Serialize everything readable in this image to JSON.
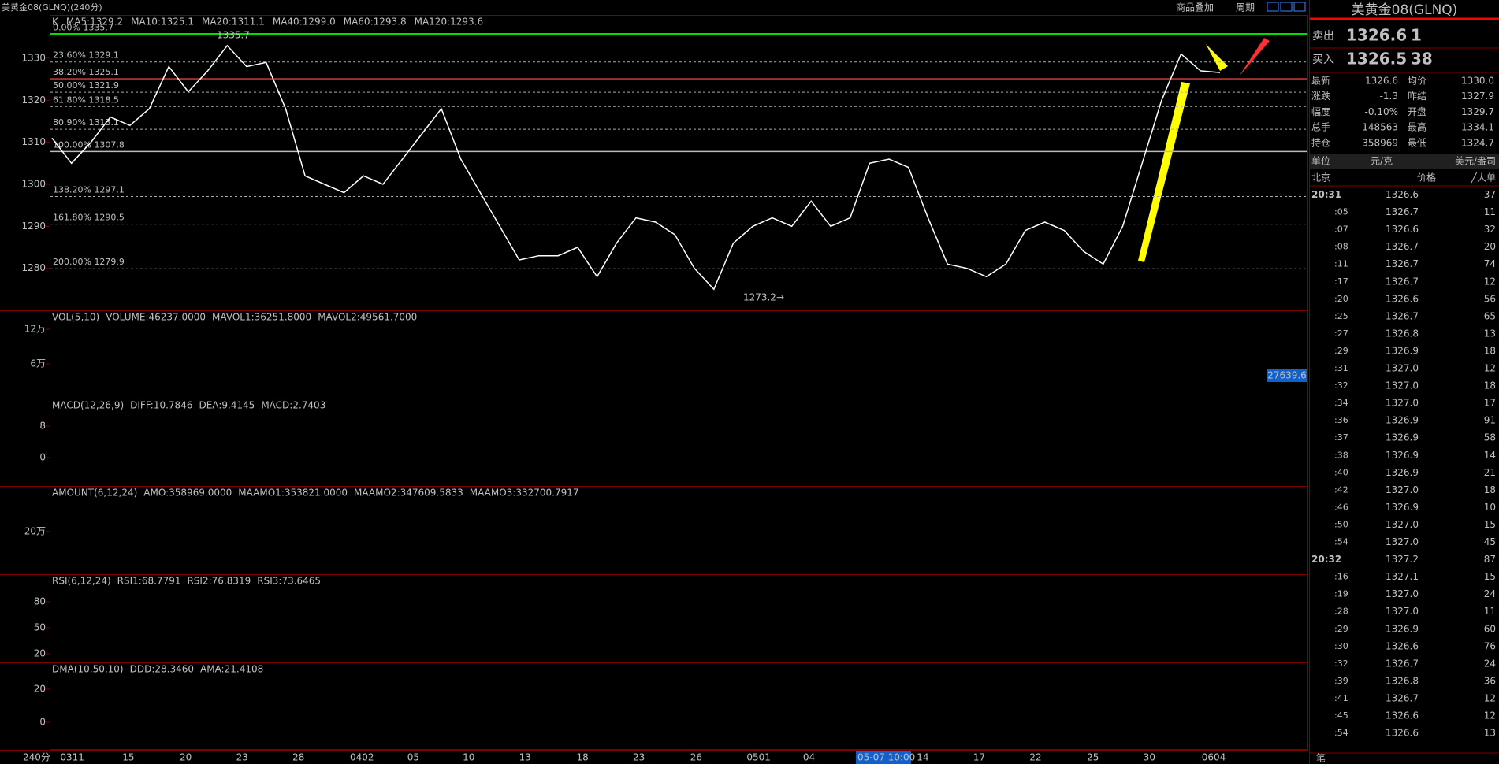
{
  "header": {
    "title": "美黄金08(GLNQ)(240分)",
    "overlay": "商品叠加",
    "period": "周期"
  },
  "kline": {
    "legend": [
      {
        "text": "K",
        "color": "#c0c0c0"
      },
      {
        "text": "MA5:1329.2",
        "color": "#ffffff"
      },
      {
        "text": "MA10:1325.1",
        "color": "#ffff00"
      },
      {
        "text": "MA20:1311.1",
        "color": "#ff00ff"
      },
      {
        "text": "MA40:1299.0",
        "color": "#00e000"
      },
      {
        "text": "MA60:1293.8",
        "color": "#8080ff"
      },
      {
        "text": "MA120:1293.6",
        "color": "#ff8000"
      }
    ],
    "ylim": [
      1270,
      1340.3
    ],
    "yticks": [
      1280,
      1290,
      1300,
      1310,
      1320,
      1330
    ],
    "fib": [
      {
        "label": "0.00% 1335.7",
        "value": 1335.7
      },
      {
        "label": "23.60% 1329.1",
        "value": 1329.1
      },
      {
        "label": "38.20% 1325.1",
        "value": 1325.1
      },
      {
        "label": "50.00% 1321.9",
        "value": 1321.9
      },
      {
        "label": "61.80% 1318.5",
        "value": 1318.5
      },
      {
        "label": "80.90% 1313.1",
        "value": 1313.1
      },
      {
        "label": "100.00% 1307.8",
        "value": 1307.8
      },
      {
        "label": "138.20% 1297.1",
        "value": 1297.1
      },
      {
        "label": "161.80% 1290.5",
        "value": 1290.5
      },
      {
        "label": "200.00% 1279.9",
        "value": 1279.9
      }
    ],
    "high_label": "1335.7",
    "low_label": "1273.2→",
    "closes": [
      1311,
      1305,
      1310,
      1316,
      1314,
      1318,
      1328,
      1322,
      1327,
      1333,
      1328,
      1329,
      1318,
      1302,
      1300,
      1298,
      1302,
      1300,
      1306,
      1312,
      1318,
      1306,
      1298,
      1290,
      1282,
      1283,
      1283,
      1285,
      1278,
      1286,
      1292,
      1291,
      1288,
      1280,
      1275,
      1286,
      1290,
      1292,
      1290,
      1296,
      1290,
      1292,
      1305,
      1306,
      1304,
      1292,
      1281,
      1280,
      1278,
      1281,
      1289,
      1291,
      1289,
      1284,
      1281,
      1290,
      1305,
      1320,
      1331,
      1327,
      1326.6
    ],
    "color": "#ffffff"
  },
  "panels": [
    {
      "labels": [
        {
          "text": "VOL(5,10)",
          "color": "#c0c0c0"
        },
        {
          "text": "VOLUME:46237.0000",
          "color": "#ffffff"
        },
        {
          "text": "MAVOL1:36251.8000",
          "color": "#ffffff"
        },
        {
          "text": "MAVOL2:49561.7000",
          "color": "#ffff00"
        }
      ],
      "ticks": [
        "12万",
        "6万"
      ],
      "badge": "27639.6"
    },
    {
      "labels": [
        {
          "text": "MACD(12,26,9)",
          "color": "#c0c0c0"
        },
        {
          "text": "DIFF:10.7846",
          "color": "#ffffff"
        },
        {
          "text": "DEA:9.4145",
          "color": "#ffff00"
        },
        {
          "text": "MACD:2.7403",
          "color": "#c0c0c0"
        }
      ],
      "ticks": [
        "8",
        "0"
      ]
    },
    {
      "labels": [
        {
          "text": "AMOUNT(6,12,24)",
          "color": "#c0c0c0"
        },
        {
          "text": "AMO:358969.0000",
          "color": "#ffffff"
        },
        {
          "text": "MAAMO1:353821.0000",
          "color": "#ffffff"
        },
        {
          "text": "MAAMO2:347609.5833",
          "color": "#ffff00"
        },
        {
          "text": "MAAMO3:332700.7917",
          "color": "#ff00ff"
        }
      ],
      "ticks": [
        "20万"
      ]
    },
    {
      "labels": [
        {
          "text": "RSI(6,12,24)",
          "color": "#c0c0c0"
        },
        {
          "text": "RSI1:68.7791",
          "color": "#ffffff"
        },
        {
          "text": "RSI2:76.8319",
          "color": "#ffff00"
        },
        {
          "text": "RSI3:73.6465",
          "color": "#ff00ff"
        }
      ],
      "ticks": [
        "80",
        "50",
        "20"
      ]
    },
    {
      "labels": [
        {
          "text": "DMA(10,50,10)",
          "color": "#c0c0c0"
        },
        {
          "text": "DDD:28.3460",
          "color": "#ffffff"
        },
        {
          "text": "AMA:21.4108",
          "color": "#ffff00"
        }
      ],
      "ticks": [
        "20",
        "0"
      ]
    }
  ],
  "xaxis": {
    "unit": "240分",
    "dates": [
      "0311",
      "15",
      "20",
      "23",
      "28",
      "0402",
      "05",
      "10",
      "13",
      "18",
      "23",
      "26",
      "0501",
      "04",
      "05-07 10:00",
      "14",
      "17",
      "22",
      "25",
      "30",
      "0604"
    ]
  },
  "quote": {
    "title": "美黄金08(GLNQ)",
    "sell": [
      "卖出",
      "1326.6",
      "1"
    ],
    "buy": [
      "买入",
      "1326.5",
      "38"
    ],
    "stats": [
      [
        "最新",
        "1326.6",
        "均价",
        "1330.0"
      ],
      [
        "涨跌",
        "-1.3",
        "昨结",
        "1327.9"
      ],
      [
        "幅度",
        "-0.10%",
        "开盘",
        "1329.7"
      ],
      [
        "总手",
        "148563",
        "最高",
        "1334.1"
      ],
      [
        "持仓",
        "358969",
        "最低",
        "1324.7"
      ]
    ],
    "unit": [
      "单位",
      "元/克",
      "美元/盎司"
    ],
    "columns": [
      "北京",
      "价格",
      "╱大单"
    ],
    "ticks": [
      [
        "20:31",
        "1326.6",
        "37"
      ],
      [
        ":05",
        "1326.7",
        "11"
      ],
      [
        ":07",
        "1326.6",
        "32"
      ],
      [
        ":08",
        "1326.7",
        "20"
      ],
      [
        ":11",
        "1326.7",
        "74"
      ],
      [
        ":17",
        "1326.7",
        "12"
      ],
      [
        ":20",
        "1326.6",
        "56"
      ],
      [
        ":25",
        "1326.7",
        "65"
      ],
      [
        ":27",
        "1326.8",
        "13"
      ],
      [
        ":29",
        "1326.9",
        "18"
      ],
      [
        ":31",
        "1327.0",
        "12"
      ],
      [
        ":32",
        "1327.0",
        "18"
      ],
      [
        ":34",
        "1327.0",
        "17"
      ],
      [
        ":36",
        "1326.9",
        "91"
      ],
      [
        ":37",
        "1326.9",
        "58"
      ],
      [
        ":38",
        "1326.9",
        "14"
      ],
      [
        ":40",
        "1326.9",
        "21"
      ],
      [
        ":42",
        "1327.0",
        "18"
      ],
      [
        ":46",
        "1326.9",
        "10"
      ],
      [
        ":50",
        "1327.0",
        "15"
      ],
      [
        ":54",
        "1327.0",
        "45"
      ],
      [
        "20:32",
        "1327.2",
        "87"
      ],
      [
        ":16",
        "1327.1",
        "15"
      ],
      [
        ":19",
        "1327.0",
        "24"
      ],
      [
        ":28",
        "1327.0",
        "11"
      ],
      [
        ":29",
        "1326.9",
        "60"
      ],
      [
        ":30",
        "1326.6",
        "76"
      ],
      [
        ":32",
        "1326.7",
        "24"
      ],
      [
        ":39",
        "1326.8",
        "36"
      ],
      [
        ":41",
        "1326.7",
        "12"
      ],
      [
        ":45",
        "1326.6",
        "12"
      ],
      [
        ":54",
        "1326.6",
        "13"
      ]
    ],
    "vol_colors": [
      "#00e000",
      "#ff3030",
      "#00e000",
      "#ff3030",
      "#ff3030",
      "#ff3030",
      "#00e000",
      "#ff3030",
      "#ff3030",
      "#ff3030",
      "#ff3030",
      "#ff3030",
      "#ff3030",
      "#ff3030",
      "#ff3030",
      "#ff3030",
      "#ff3030",
      "#ff3030",
      "#00e000",
      "#ff3030",
      "#ff3030",
      "#ff3030",
      "#00e000",
      "#00e000",
      "#ff3030",
      "#00e000",
      "#00e000",
      "#ff3030",
      "#ff3030",
      "#00e000",
      "#00e000",
      "#ff3030"
    ],
    "footer": "笔"
  }
}
